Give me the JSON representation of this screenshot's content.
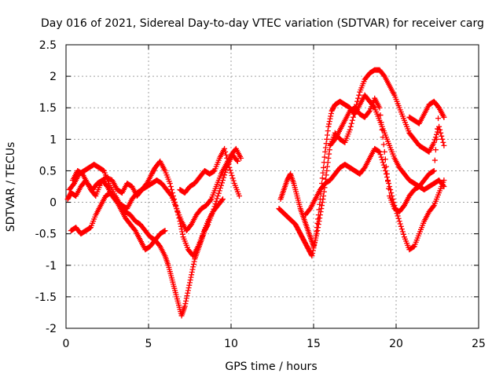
{
  "chart_data": {
    "type": "scatter",
    "title": "Day 016 of 2021, Sidereal Day-to-day VTEC variation (SDTVAR) for receiver carg",
    "xlabel": "GPS time / hours",
    "ylabel": "SDTVAR / TECUs",
    "xlim": [
      0,
      25
    ],
    "ylim": [
      -2,
      2.5
    ],
    "xticks": [
      0,
      5,
      10,
      15,
      20,
      25
    ],
    "yticks": [
      -2,
      -1.5,
      -1,
      -0.5,
      0,
      0.5,
      1,
      1.5,
      2,
      2.5
    ],
    "xtick_labels": [
      "0",
      "5",
      "10",
      "15",
      "20",
      "25"
    ],
    "ytick_labels": [
      "-2",
      "-1.5",
      "-1",
      "-0.5",
      "0",
      "0.5",
      "1",
      "1.5",
      "2",
      "2.5"
    ],
    "grid": true,
    "marker": "+",
    "color": "#ff0000",
    "series": [
      {
        "x": [
          0.1,
          0.3,
          0.6,
          0.9,
          1.2,
          1.5,
          1.8,
          2.1,
          2.4,
          2.8,
          3.1,
          3.4,
          3.7,
          4.0,
          4.3,
          4.6,
          4.9,
          5.2,
          5.4,
          5.7,
          6.0,
          6.3,
          6.6,
          6.9,
          7.1,
          7.4,
          7.7,
          8.0,
          8.3,
          8.6,
          8.9,
          9.2,
          9.5
        ],
        "y": [
          0.05,
          0.15,
          0.1,
          0.25,
          0.35,
          0.2,
          0.1,
          0.3,
          0.4,
          0.35,
          0.2,
          0.15,
          0.3,
          0.25,
          0.1,
          0.2,
          0.3,
          0.45,
          0.55,
          0.65,
          0.5,
          0.3,
          0.0,
          -0.3,
          -0.55,
          -0.75,
          -0.85,
          -0.7,
          -0.5,
          -0.3,
          -0.15,
          -0.05,
          0.05
        ]
      },
      {
        "x": [
          0.2,
          0.5,
          0.8,
          1.1,
          1.4,
          1.7,
          2.0,
          2.3,
          2.6,
          3.0,
          3.3,
          3.6,
          3.9,
          4.2,
          4.5,
          4.8,
          5.1,
          5.4,
          5.7,
          6.0,
          6.2,
          6.4,
          6.6,
          6.8,
          7.0,
          7.2,
          7.4,
          7.6,
          7.8,
          8.0,
          8.2,
          8.4,
          8.6,
          8.9,
          9.2,
          9.5,
          9.8,
          10.1,
          10.4
        ],
        "y": [
          0.2,
          0.3,
          0.45,
          0.5,
          0.55,
          0.6,
          0.55,
          0.5,
          0.3,
          0.1,
          -0.05,
          -0.15,
          -0.2,
          -0.3,
          -0.35,
          -0.45,
          -0.55,
          -0.6,
          -0.7,
          -0.85,
          -1.0,
          -1.2,
          -1.4,
          -1.6,
          -1.8,
          -1.65,
          -1.4,
          -1.15,
          -0.9,
          -0.75,
          -0.6,
          -0.45,
          -0.35,
          -0.15,
          0.1,
          0.35,
          0.6,
          0.75,
          0.65
        ]
      },
      {
        "x": [
          0.3,
          0.6,
          0.9,
          1.2,
          1.5,
          1.8,
          2.1,
          2.4,
          2.7,
          3.0,
          3.3,
          3.6,
          3.9,
          4.2,
          4.5,
          4.8,
          5.1,
          5.4,
          5.7,
          6.0
        ],
        "y": [
          -0.45,
          -0.4,
          -0.5,
          -0.45,
          -0.4,
          -0.2,
          -0.05,
          0.1,
          0.15,
          0.05,
          -0.1,
          -0.25,
          -0.35,
          -0.45,
          -0.6,
          -0.75,
          -0.7,
          -0.6,
          -0.5,
          -0.45
        ]
      },
      {
        "x": [
          0.4,
          0.7,
          1.0,
          1.3,
          1.6,
          1.9,
          2.2,
          2.5,
          2.8,
          3.1,
          3.4,
          3.7,
          4.0,
          4.3,
          4.6,
          4.9,
          5.2,
          5.5,
          5.8,
          6.1,
          6.4,
          6.7,
          7.0,
          7.3,
          7.6,
          7.9,
          8.2,
          8.5,
          8.8,
          9.1,
          9.4,
          9.7,
          10.0,
          10.3,
          10.6
        ],
        "y": [
          0.35,
          0.5,
          0.45,
          0.3,
          0.2,
          0.3,
          0.35,
          0.25,
          0.1,
          0.0,
          -0.05,
          -0.1,
          0.05,
          0.15,
          0.2,
          0.25,
          0.3,
          0.35,
          0.3,
          0.2,
          0.1,
          -0.1,
          -0.3,
          -0.45,
          -0.35,
          -0.2,
          -0.1,
          -0.05,
          0.05,
          0.25,
          0.45,
          0.6,
          0.75,
          0.85,
          0.7
        ]
      },
      {
        "x": [
          6.9,
          7.2,
          7.5,
          7.8,
          8.1,
          8.4,
          8.7,
          9.0,
          9.3,
          9.6,
          9.9,
          10.2,
          10.5
        ],
        "y": [
          0.2,
          0.15,
          0.25,
          0.3,
          0.4,
          0.5,
          0.45,
          0.5,
          0.7,
          0.85,
          0.55,
          0.3,
          0.1
        ]
      },
      {
        "x": [
          12.9,
          13.1,
          13.3,
          13.5,
          13.7,
          13.9,
          14.1,
          14.3,
          14.5,
          14.7,
          14.9,
          15.1,
          15.3,
          15.5,
          15.7,
          15.9,
          16.1,
          16.3,
          16.6,
          16.9,
          17.2,
          17.5,
          17.8,
          18.1,
          18.4,
          18.7,
          19.0,
          19.3,
          19.6,
          19.9,
          20.2,
          20.5,
          20.8,
          21.1,
          21.4,
          21.7,
          22.0,
          22.3,
          22.6,
          22.9
        ],
        "y": [
          -0.1,
          -0.15,
          -0.2,
          -0.25,
          -0.3,
          -0.35,
          -0.45,
          -0.55,
          -0.65,
          -0.75,
          -0.85,
          -0.6,
          -0.2,
          0.3,
          0.8,
          1.2,
          1.45,
          1.55,
          1.6,
          1.55,
          1.5,
          1.4,
          1.55,
          1.7,
          1.6,
          1.5,
          1.3,
          1.1,
          0.9,
          0.7,
          0.55,
          0.45,
          0.35,
          0.3,
          0.25,
          0.2,
          0.25,
          0.3,
          0.35,
          0.25
        ]
      },
      {
        "x": [
          13.0,
          13.2,
          13.4,
          13.6,
          13.8,
          14.0,
          14.2,
          14.4,
          14.6,
          14.8,
          15.0,
          15.2,
          15.4,
          15.6,
          15.8,
          16.0,
          16.3,
          16.6,
          16.9,
          17.2,
          17.5,
          17.8,
          18.1,
          18.4,
          18.7,
          19.0,
          19.3,
          19.6,
          19.9,
          20.2,
          20.5,
          20.8,
          21.1,
          21.4,
          21.7,
          22.0,
          22.3,
          22.6,
          22.9
        ],
        "y": [
          0.05,
          0.2,
          0.35,
          0.45,
          0.3,
          0.1,
          -0.1,
          -0.25,
          -0.4,
          -0.55,
          -0.7,
          -0.5,
          -0.2,
          0.1,
          0.5,
          0.9,
          1.1,
          1.0,
          0.95,
          1.15,
          1.45,
          1.75,
          1.95,
          2.05,
          2.1,
          2.1,
          2.0,
          1.85,
          1.7,
          1.5,
          1.3,
          1.1,
          1.0,
          0.9,
          0.85,
          0.8,
          0.95,
          1.2,
          0.9
        ]
      },
      {
        "x": [
          14.5,
          14.8,
          15.1,
          15.4,
          15.7,
          16.0,
          16.3,
          16.6,
          16.9,
          17.2,
          17.5,
          17.8,
          18.1,
          18.4,
          18.7,
          19.0,
          19.3,
          19.6,
          19.9,
          20.2,
          20.5,
          20.8,
          21.1,
          21.4,
          21.7,
          22.0,
          22.3,
          22.6,
          22.9
        ],
        "y": [
          -0.2,
          -0.1,
          0.05,
          0.2,
          0.3,
          0.35,
          0.45,
          0.55,
          0.6,
          0.55,
          0.5,
          0.45,
          0.55,
          0.7,
          0.85,
          0.8,
          0.55,
          0.25,
          -0.05,
          -0.3,
          -0.55,
          -0.75,
          -0.7,
          -0.5,
          -0.3,
          -0.15,
          -0.05,
          0.15,
          0.35
        ]
      },
      {
        "x": [
          16.0,
          16.3,
          16.6,
          16.9,
          17.2,
          17.5,
          17.8,
          18.1,
          18.4,
          18.7,
          19.0,
          19.3,
          19.6,
          19.9,
          20.2,
          20.5,
          20.8,
          21.1,
          21.4,
          21.7,
          22.0,
          22.3,
          22.6,
          22.9
        ],
        "y": [
          0.9,
          1.0,
          1.15,
          1.3,
          1.45,
          1.5,
          1.4,
          1.35,
          1.45,
          1.65,
          1.5,
          0.8,
          0.1,
          -0.1,
          -0.15,
          -0.05,
          0.1,
          0.2,
          0.25,
          0.35,
          0.45,
          0.5,
          1.5,
          1.35
        ]
      },
      {
        "x": [
          20.8,
          21.1,
          21.4,
          21.7,
          22.0,
          22.3,
          22.6,
          22.9
        ],
        "y": [
          1.35,
          1.3,
          1.25,
          1.4,
          1.55,
          1.6,
          1.5,
          1.35
        ]
      }
    ]
  }
}
